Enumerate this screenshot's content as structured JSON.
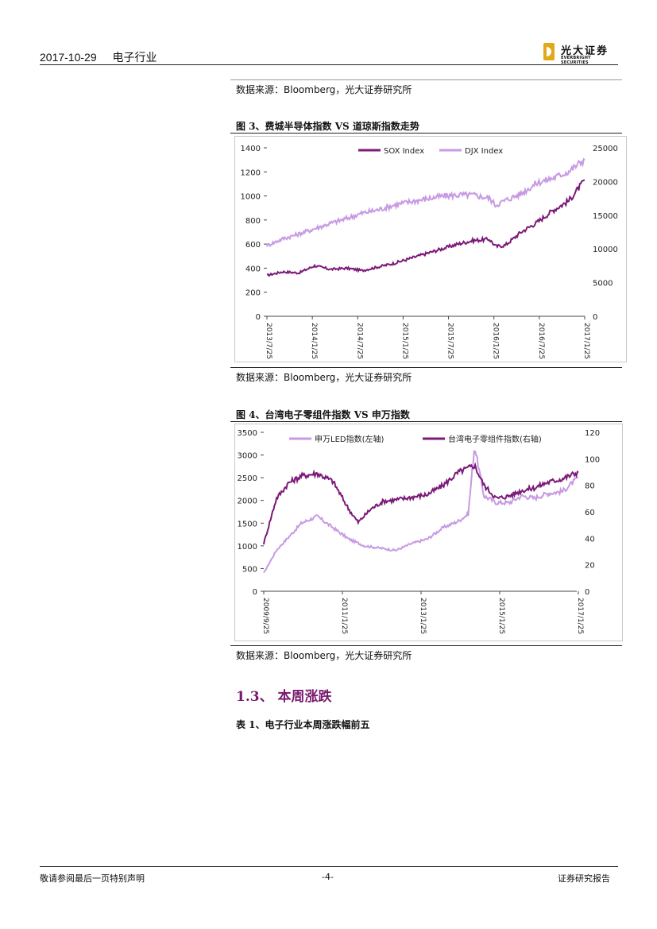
{
  "header": {
    "date": "2017-10-29",
    "industry": "电子行业",
    "logo_cn": "光大证券",
    "logo_en": "EVERBRIGHT SECURITIES"
  },
  "source_top": "数据来源：Bloomberg，光大证券研究所",
  "fig3": {
    "caption": "图 3、费城半导体指数 VS 道琼斯指数走势",
    "source": "数据来源：Bloomberg，光大证券研究所",
    "chart_data": {
      "type": "line",
      "legend_position": "top",
      "x_ticks": [
        "2013/7/25",
        "2014/1/25",
        "2014/7/25",
        "2015/1/25",
        "2015/7/25",
        "2016/1/25",
        "2016/7/25",
        "2017/1/25"
      ],
      "left_axis": {
        "ticks": [
          "1400",
          "1200",
          "1000",
          "800",
          "600",
          "400",
          "200",
          "0"
        ],
        "ylim": [
          0,
          1400
        ]
      },
      "right_axis": {
        "ticks": [
          "25000",
          "20000",
          "15000",
          "10000",
          "5000",
          "0"
        ],
        "ylim": [
          0,
          25000
        ]
      },
      "series": [
        {
          "name": "SOX Index",
          "axis": "left",
          "color": "#7b1a78",
          "x": [
            0,
            0.05,
            0.1,
            0.15,
            0.2,
            0.25,
            0.3,
            0.35,
            0.4,
            0.45,
            0.5,
            0.55,
            0.6,
            0.65,
            0.7,
            0.72,
            0.75,
            0.8,
            0.85,
            0.9,
            0.95,
            1.0
          ],
          "values": [
            340,
            370,
            360,
            420,
            390,
            400,
            380,
            410,
            440,
            480,
            520,
            560,
            600,
            630,
            640,
            580,
            590,
            700,
            780,
            880,
            960,
            1130
          ]
        },
        {
          "name": "DJX Index",
          "axis": "right",
          "color": "#c79ae3",
          "x": [
            0,
            0.05,
            0.1,
            0.15,
            0.2,
            0.25,
            0.3,
            0.35,
            0.4,
            0.45,
            0.5,
            0.55,
            0.6,
            0.65,
            0.7,
            0.72,
            0.75,
            0.8,
            0.85,
            0.9,
            0.95,
            1.0
          ],
          "values": [
            10500,
            11500,
            12200,
            13000,
            13800,
            14500,
            15300,
            15800,
            16500,
            17000,
            17400,
            17800,
            18000,
            18000,
            17500,
            16500,
            17200,
            18200,
            19800,
            20500,
            21500,
            23300
          ]
        }
      ]
    }
  },
  "fig4": {
    "caption": "图 4、台湾电子零组件指数 VS 申万指数",
    "source": "数据来源：Bloomberg，光大证券研究所",
    "chart_data": {
      "type": "line",
      "legend_position": "top",
      "x_ticks": [
        "2009/9/25",
        "2011/1/25",
        "2013/1/25",
        "2015/1/25",
        "2017/1/25"
      ],
      "left_axis": {
        "ticks": [
          "3500",
          "3000",
          "2500",
          "2000",
          "1500",
          "1000",
          "500",
          "0"
        ],
        "ylim": [
          0,
          3500
        ]
      },
      "right_axis": {
        "ticks": [
          "120",
          "100",
          "80",
          "60",
          "40",
          "20",
          "0"
        ],
        "ylim": [
          0,
          120
        ]
      },
      "series": [
        {
          "name": "申万LED指数(左轴)",
          "axis": "left",
          "color": "#c79ae3",
          "x": [
            0,
            0.04,
            0.08,
            0.12,
            0.17,
            0.22,
            0.27,
            0.32,
            0.37,
            0.42,
            0.47,
            0.52,
            0.57,
            0.62,
            0.65,
            0.67,
            0.7,
            0.74,
            0.78,
            0.82,
            0.86,
            0.9,
            0.95,
            1.0
          ],
          "values": [
            400,
            900,
            1200,
            1500,
            1650,
            1400,
            1150,
            1000,
            950,
            900,
            1050,
            1150,
            1400,
            1550,
            1700,
            3200,
            2100,
            1950,
            1950,
            2100,
            2050,
            2150,
            2200,
            2500
          ]
        },
        {
          "name": "台湾电子零组件指数(右轴)",
          "axis": "right",
          "color": "#7b1a78",
          "x": [
            0,
            0.04,
            0.08,
            0.12,
            0.17,
            0.22,
            0.27,
            0.3,
            0.34,
            0.38,
            0.42,
            0.47,
            0.52,
            0.57,
            0.62,
            0.67,
            0.7,
            0.74,
            0.78,
            0.82,
            0.86,
            0.9,
            0.95,
            1.0
          ],
          "values": [
            36,
            70,
            82,
            87,
            89,
            83,
            62,
            52,
            62,
            68,
            69,
            71,
            73,
            80,
            90,
            95,
            80,
            70,
            72,
            76,
            78,
            82,
            85,
            90
          ]
        }
      ]
    }
  },
  "section": {
    "title": "1.3、 本周涨跌"
  },
  "table_caption": "表 1、电子行业本周涨跌幅前五",
  "footer": {
    "left": "敬请参阅最后一页特别声明",
    "center": "-4-",
    "right": "证券研究报告"
  }
}
